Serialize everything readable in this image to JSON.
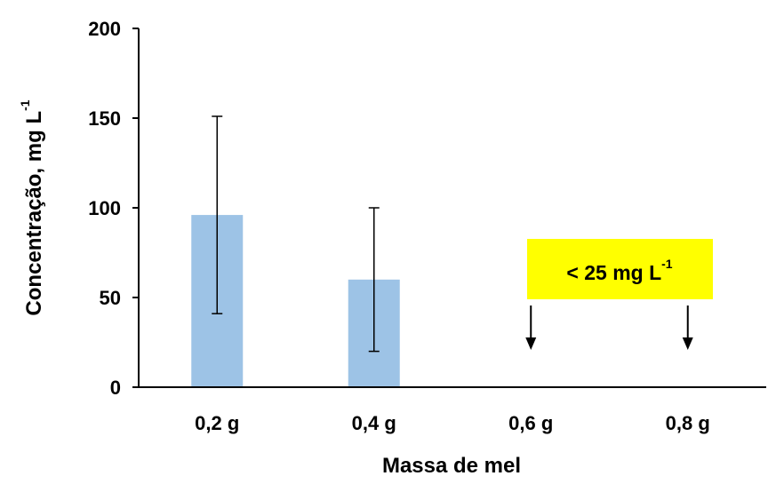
{
  "chart_data": {
    "type": "bar",
    "categories": [
      "0,2 g",
      "0,4 g",
      "0,6 g",
      "0,8 g"
    ],
    "series": [
      {
        "values": [
          96,
          60,
          null,
          null
        ],
        "errors": [
          55,
          40,
          null,
          null
        ]
      }
    ],
    "bar_color": "#9DC3E6",
    "ylim": [
      0,
      200
    ],
    "yticks": [
      "0",
      "50",
      "100",
      "150",
      "200"
    ],
    "xlabel": "Massa de mel",
    "ylabel_main": "Concentração, mg L",
    "ylabel_sup": "-1",
    "grid": false,
    "annotation": {
      "text_main": "< 25 mg L",
      "text_sup": "-1",
      "background": "#FFFF00",
      "arrow_categories": [
        "0,6 g",
        "0,8 g"
      ]
    }
  }
}
